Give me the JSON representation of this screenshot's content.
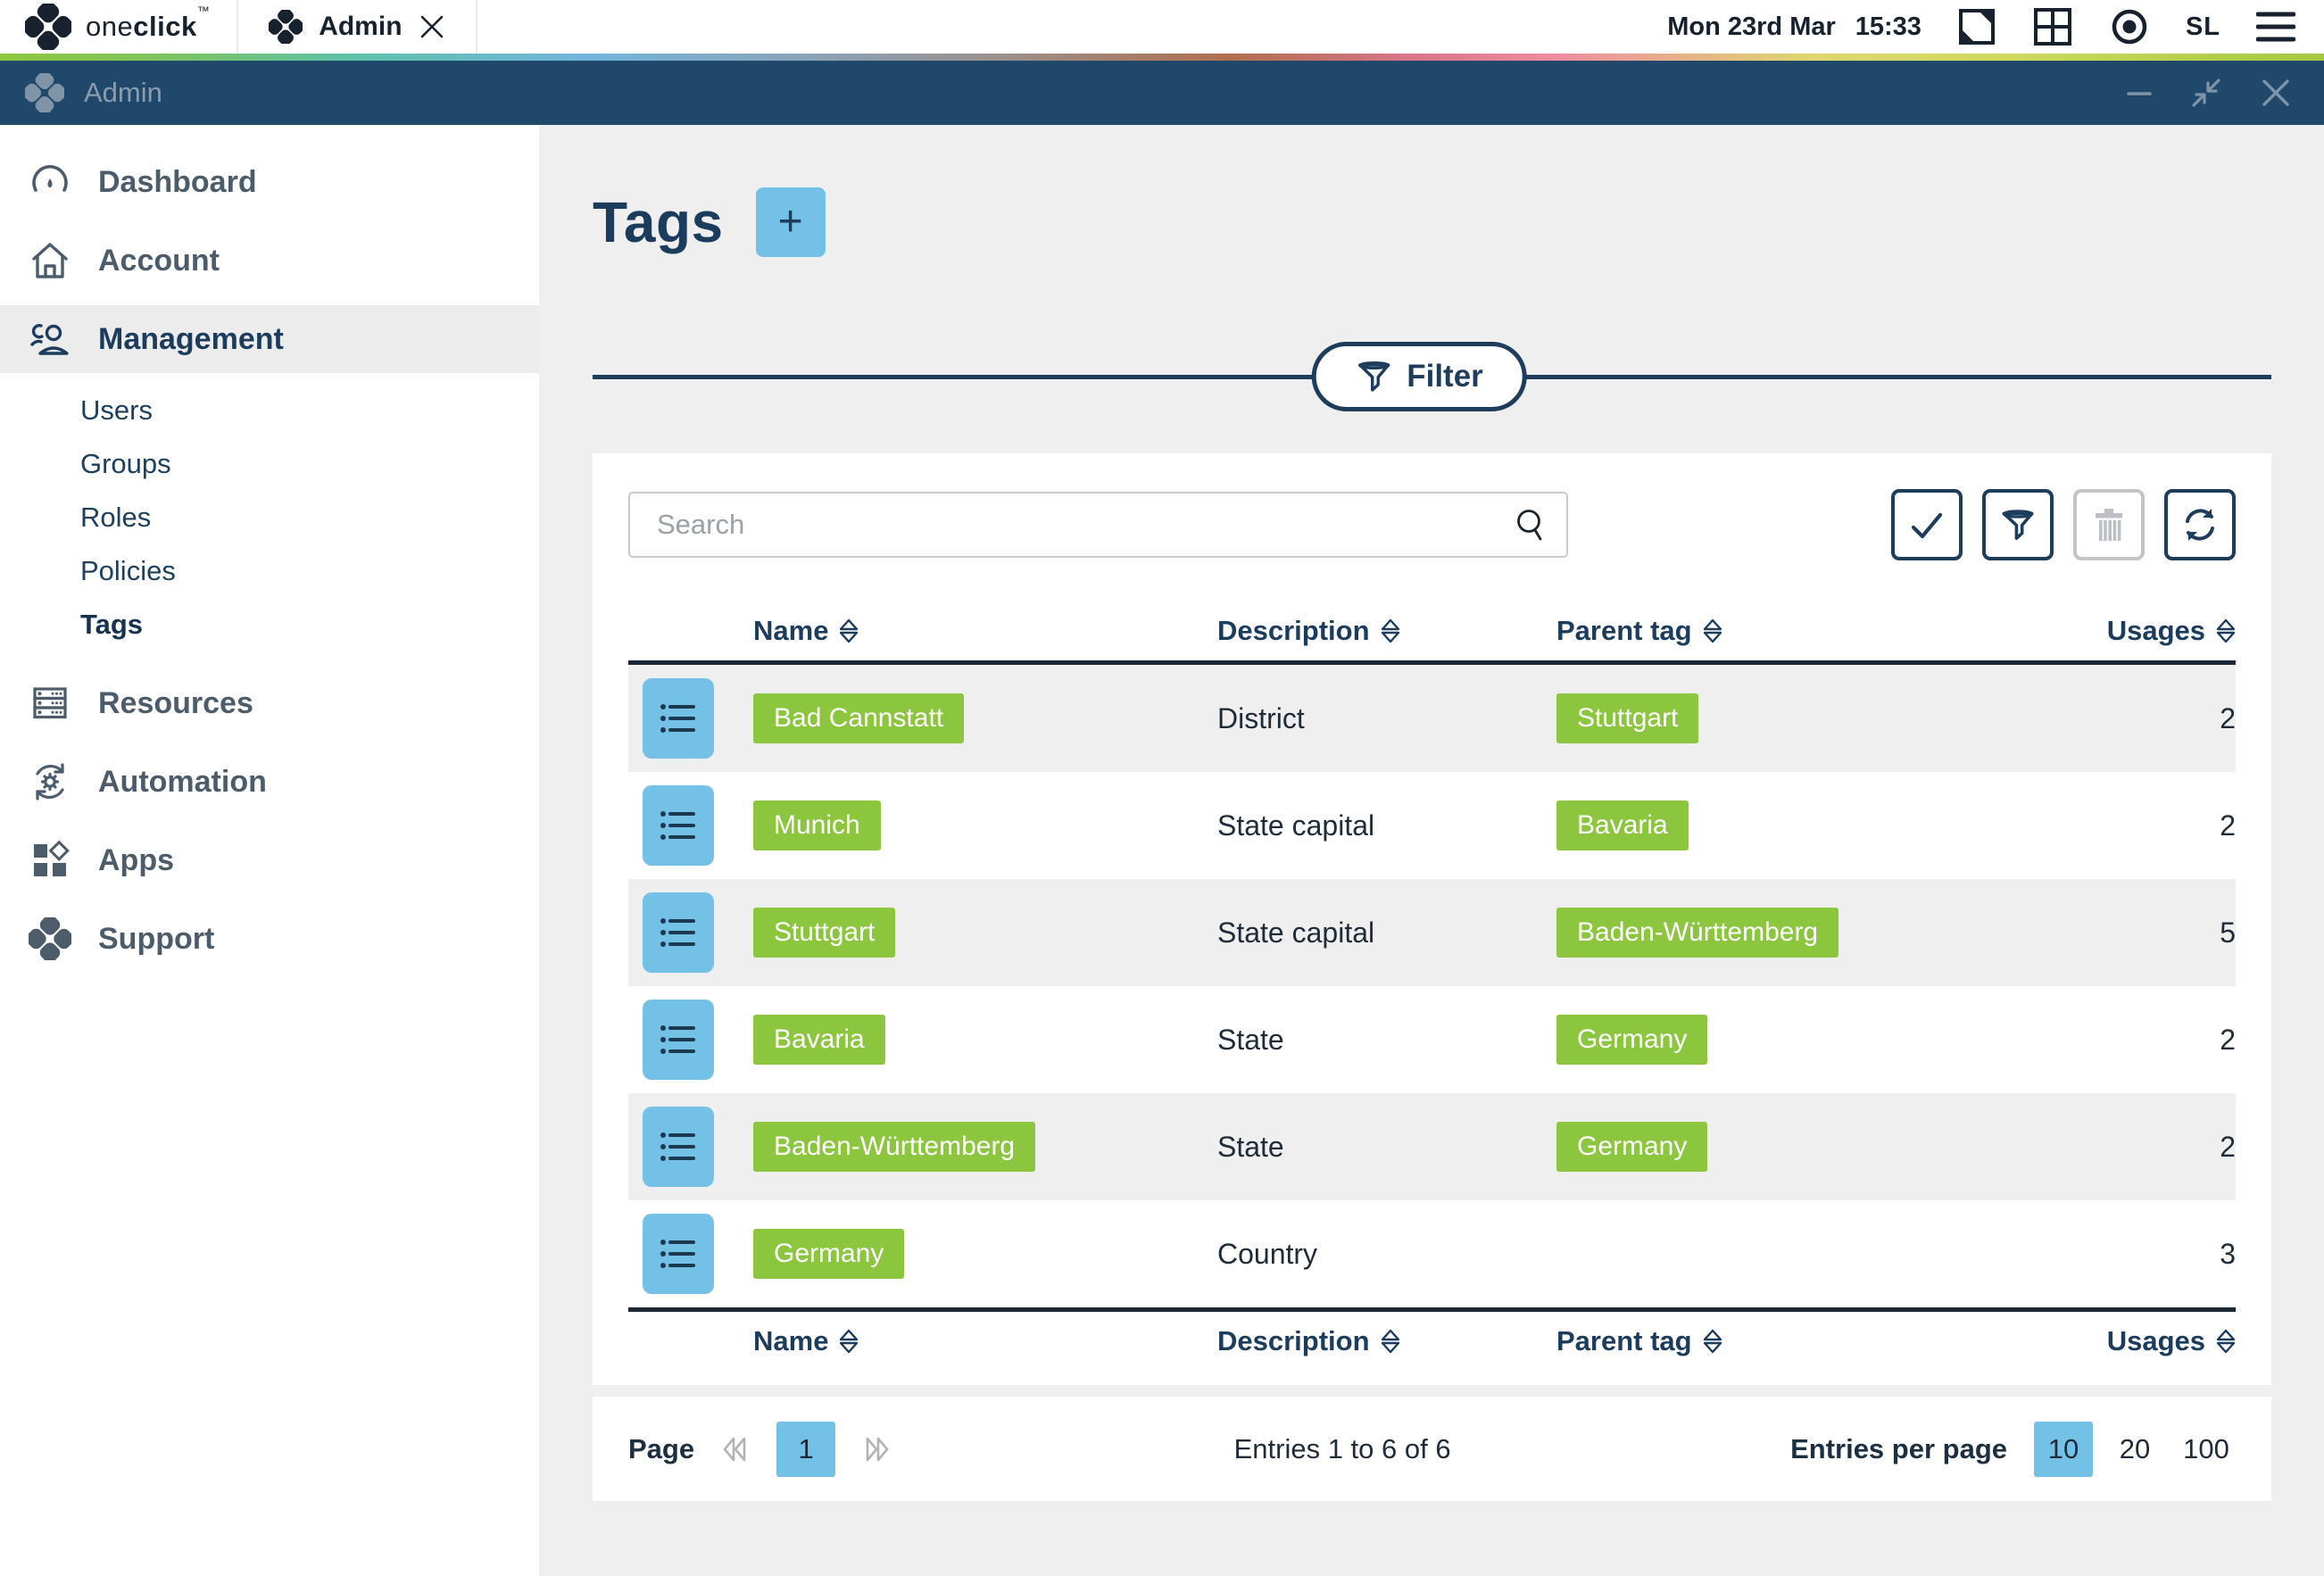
{
  "topbar": {
    "logo": {
      "light": "one",
      "bold": "click",
      "tm": "™"
    },
    "tab": {
      "label": "Admin",
      "close": "×"
    },
    "date": "Mon 23rd Mar",
    "time": "15:33",
    "user_initials": "SL"
  },
  "titlebar": {
    "title": "Admin",
    "minimize": "–"
  },
  "sidebar": {
    "items": [
      {
        "label": "Dashboard",
        "icon": "gauge"
      },
      {
        "label": "Account",
        "icon": "home"
      },
      {
        "label": "Management",
        "icon": "users",
        "active": true
      },
      {
        "label": "Resources",
        "icon": "server"
      },
      {
        "label": "Automation",
        "icon": "automation"
      },
      {
        "label": "Apps",
        "icon": "apps"
      },
      {
        "label": "Support",
        "icon": "diamond"
      }
    ],
    "sub_items": [
      {
        "label": "Users"
      },
      {
        "label": "Groups"
      },
      {
        "label": "Roles"
      },
      {
        "label": "Policies"
      },
      {
        "label": "Tags",
        "active": true
      }
    ]
  },
  "page": {
    "title": "Tags",
    "add_button": "+",
    "filter_button": "Filter"
  },
  "toolbar": {
    "search_placeholder": "Search",
    "buttons": [
      "select",
      "filter",
      "delete",
      "refresh"
    ]
  },
  "table": {
    "columns": [
      "Name",
      "Description",
      "Parent tag",
      "Usages"
    ],
    "rows": [
      {
        "name": "Bad Cannstatt",
        "description": "District",
        "parent_tag": "Stuttgart",
        "usages": "2"
      },
      {
        "name": "Munich",
        "description": "State capital",
        "parent_tag": "Bavaria",
        "usages": "2"
      },
      {
        "name": "Stuttgart",
        "description": "State capital",
        "parent_tag": "Baden-Württemberg",
        "usages": "5"
      },
      {
        "name": "Bavaria",
        "description": "State",
        "parent_tag": "Germany",
        "usages": "2"
      },
      {
        "name": "Baden-Württemberg",
        "description": "State",
        "parent_tag": "Germany",
        "usages": "2"
      },
      {
        "name": "Germany",
        "description": "Country",
        "parent_tag": "",
        "usages": "3"
      }
    ]
  },
  "pagination": {
    "page_label": "Page",
    "current_page": "1",
    "entries_summary": "Entries 1 to 6 of 6",
    "per_page_label": "Entries per page",
    "per_page_options": [
      "10",
      "20",
      "100"
    ],
    "active_option": "10"
  },
  "colors": {
    "accent_blue": "#74c1e7",
    "tag_green": "#8cc63f",
    "navy": "#1c3c5e",
    "titlebar_bg": "#20486a"
  }
}
